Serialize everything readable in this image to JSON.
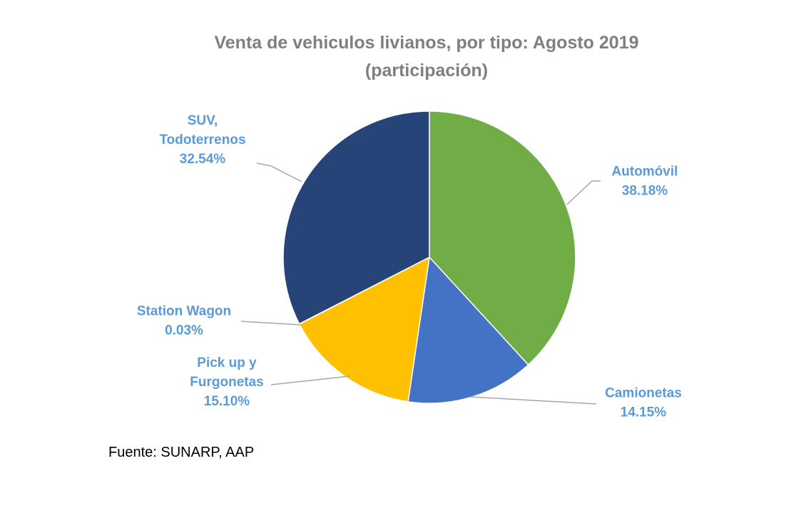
{
  "chart_data": {
    "type": "pie",
    "title": "Venta de vehiculos livianos, por tipo: Agosto 2019",
    "subtitle": "(participación)",
    "slices": [
      {
        "name": "Automóvil",
        "value": 38.18,
        "label_lines": [
          "Automóvil",
          "38.18%"
        ],
        "color": "#70ad47"
      },
      {
        "name": "Camionetas",
        "value": 14.15,
        "label_lines": [
          "Camionetas",
          "14.15%"
        ],
        "color": "#4472c4"
      },
      {
        "name": "Pick up y Furgonetas",
        "value": 15.1,
        "label_lines": [
          "Pick up y",
          "Furgonetas",
          "15.10%"
        ],
        "color": "#ffc000"
      },
      {
        "name": "Station Wagon",
        "value": 0.03,
        "label_lines": [
          "Station Wagon",
          "0.03%"
        ],
        "color": "#a5a5a5"
      },
      {
        "name": "SUV, Todoterrenos",
        "value": 32.54,
        "label_lines": [
          "SUV,",
          "Todoterrenos",
          "32.54%"
        ],
        "color": "#264478"
      }
    ],
    "label_color": "#5b9bd5",
    "leader_line_color": "#a6a6a6",
    "title_color": "#7f7f7f",
    "legend": "none"
  },
  "footer": {
    "source": "Fuente: SUNARP, AAP"
  }
}
